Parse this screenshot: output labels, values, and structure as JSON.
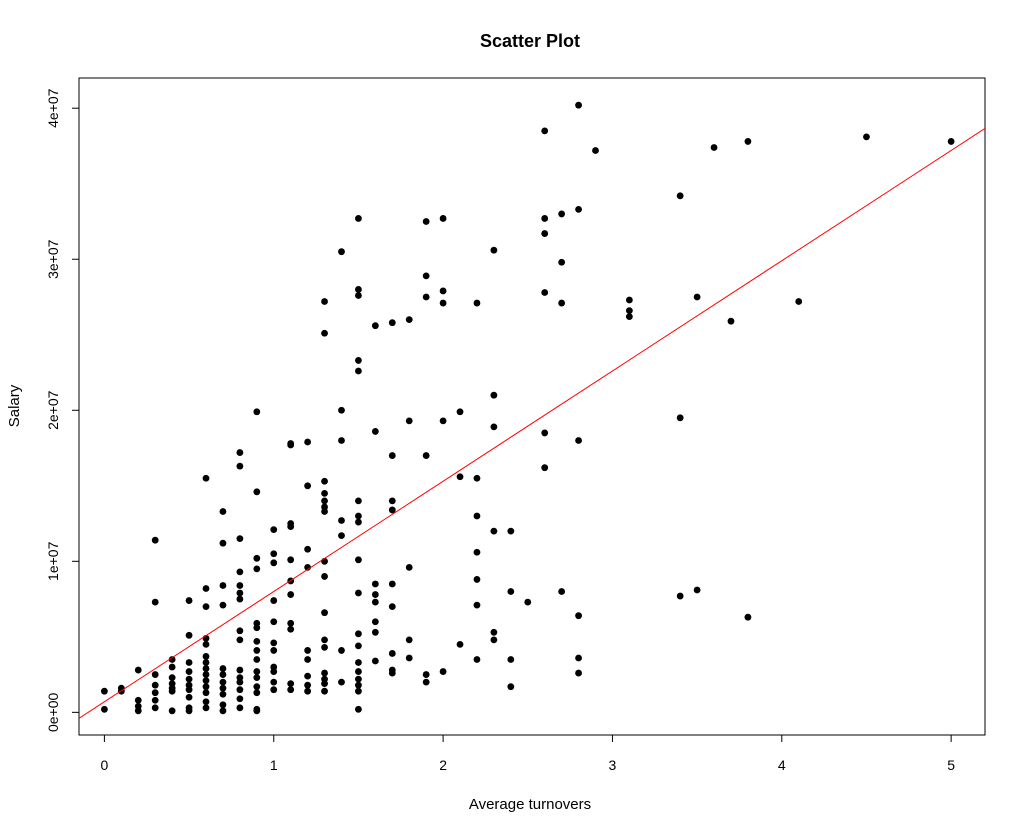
{
  "chart_data": {
    "type": "scatter",
    "title": "Scatter Plot",
    "xlabel": "Average turnovers",
    "ylabel": "Salary",
    "xlim": [
      -0.15,
      5.2
    ],
    "ylim": [
      -1500000,
      42000000
    ],
    "x_ticks": [
      0,
      1,
      2,
      3,
      4,
      5
    ],
    "x_tick_labels": [
      "0",
      "1",
      "2",
      "3",
      "4",
      "5"
    ],
    "y_ticks": [
      0,
      10000000,
      20000000,
      30000000,
      40000000
    ],
    "y_tick_labels": [
      "0e+00",
      "1e+07",
      "2e+07",
      "3e+07",
      "4e+07"
    ],
    "point_color": "#000000",
    "line_color": "#ff0000",
    "grid": false,
    "regression_line": {
      "intercept": 700000,
      "slope": 7300000
    },
    "points": [
      [
        0.0,
        1400000
      ],
      [
        0.0,
        200000
      ],
      [
        0.1,
        1600000
      ],
      [
        0.1,
        1400000
      ],
      [
        0.2,
        2800000
      ],
      [
        0.2,
        800000
      ],
      [
        0.2,
        400000
      ],
      [
        0.2,
        100000
      ],
      [
        0.3,
        11400000
      ],
      [
        0.3,
        7300000
      ],
      [
        0.3,
        2500000
      ],
      [
        0.3,
        1800000
      ],
      [
        0.3,
        1300000
      ],
      [
        0.3,
        800000
      ],
      [
        0.3,
        300000
      ],
      [
        0.4,
        3500000
      ],
      [
        0.4,
        3000000
      ],
      [
        0.4,
        2300000
      ],
      [
        0.4,
        1900000
      ],
      [
        0.4,
        1600000
      ],
      [
        0.4,
        1400000
      ],
      [
        0.4,
        100000
      ],
      [
        0.5,
        7400000
      ],
      [
        0.5,
        5100000
      ],
      [
        0.5,
        3300000
      ],
      [
        0.5,
        2700000
      ],
      [
        0.5,
        2200000
      ],
      [
        0.5,
        1800000
      ],
      [
        0.5,
        1500000
      ],
      [
        0.5,
        1000000
      ],
      [
        0.5,
        300000
      ],
      [
        0.5,
        100000
      ],
      [
        0.6,
        15500000
      ],
      [
        0.6,
        8200000
      ],
      [
        0.6,
        7000000
      ],
      [
        0.6,
        4900000
      ],
      [
        0.6,
        4500000
      ],
      [
        0.6,
        3700000
      ],
      [
        0.6,
        3300000
      ],
      [
        0.6,
        2900000
      ],
      [
        0.6,
        2500000
      ],
      [
        0.6,
        2100000
      ],
      [
        0.6,
        1700000
      ],
      [
        0.6,
        1300000
      ],
      [
        0.6,
        700000
      ],
      [
        0.6,
        300000
      ],
      [
        0.7,
        13300000
      ],
      [
        0.7,
        11200000
      ],
      [
        0.7,
        8400000
      ],
      [
        0.7,
        7100000
      ],
      [
        0.7,
        2900000
      ],
      [
        0.7,
        2500000
      ],
      [
        0.7,
        2000000
      ],
      [
        0.7,
        1600000
      ],
      [
        0.7,
        1200000
      ],
      [
        0.7,
        500000
      ],
      [
        0.7,
        100000
      ],
      [
        0.8,
        17200000
      ],
      [
        0.8,
        16300000
      ],
      [
        0.8,
        11500000
      ],
      [
        0.8,
        9300000
      ],
      [
        0.8,
        8400000
      ],
      [
        0.8,
        7900000
      ],
      [
        0.8,
        7500000
      ],
      [
        0.8,
        5400000
      ],
      [
        0.8,
        4800000
      ],
      [
        0.8,
        2800000
      ],
      [
        0.8,
        2300000
      ],
      [
        0.8,
        2000000
      ],
      [
        0.8,
        1500000
      ],
      [
        0.8,
        900000
      ],
      [
        0.8,
        300000
      ],
      [
        0.9,
        19900000
      ],
      [
        0.9,
        14600000
      ],
      [
        0.9,
        10200000
      ],
      [
        0.9,
        9500000
      ],
      [
        0.9,
        5900000
      ],
      [
        0.9,
        5600000
      ],
      [
        0.9,
        4700000
      ],
      [
        0.9,
        4100000
      ],
      [
        0.9,
        3500000
      ],
      [
        0.9,
        2700000
      ],
      [
        0.9,
        2300000
      ],
      [
        0.9,
        1700000
      ],
      [
        0.9,
        1300000
      ],
      [
        0.9,
        200000
      ],
      [
        0.9,
        100000
      ],
      [
        1.0,
        12100000
      ],
      [
        1.0,
        10500000
      ],
      [
        1.0,
        9900000
      ],
      [
        1.0,
        7400000
      ],
      [
        1.0,
        6000000
      ],
      [
        1.0,
        4600000
      ],
      [
        1.0,
        4100000
      ],
      [
        1.0,
        3000000
      ],
      [
        1.0,
        2700000
      ],
      [
        1.0,
        2000000
      ],
      [
        1.0,
        1500000
      ],
      [
        1.1,
        17800000
      ],
      [
        1.1,
        17700000
      ],
      [
        1.1,
        12500000
      ],
      [
        1.1,
        12300000
      ],
      [
        1.1,
        10100000
      ],
      [
        1.1,
        8700000
      ],
      [
        1.1,
        7800000
      ],
      [
        1.1,
        5900000
      ],
      [
        1.1,
        5500000
      ],
      [
        1.1,
        1900000
      ],
      [
        1.1,
        1500000
      ],
      [
        1.2,
        17900000
      ],
      [
        1.2,
        15000000
      ],
      [
        1.2,
        10800000
      ],
      [
        1.2,
        9600000
      ],
      [
        1.2,
        4100000
      ],
      [
        1.2,
        3500000
      ],
      [
        1.2,
        2400000
      ],
      [
        1.2,
        1800000
      ],
      [
        1.2,
        1400000
      ],
      [
        1.3,
        27200000
      ],
      [
        1.3,
        25100000
      ],
      [
        1.3,
        15300000
      ],
      [
        1.3,
        14500000
      ],
      [
        1.3,
        14000000
      ],
      [
        1.3,
        13600000
      ],
      [
        1.3,
        13300000
      ],
      [
        1.3,
        10000000
      ],
      [
        1.3,
        9000000
      ],
      [
        1.3,
        6600000
      ],
      [
        1.3,
        4800000
      ],
      [
        1.3,
        4300000
      ],
      [
        1.3,
        2600000
      ],
      [
        1.3,
        2200000
      ],
      [
        1.3,
        1900000
      ],
      [
        1.3,
        1400000
      ],
      [
        1.4,
        30500000
      ],
      [
        1.4,
        20000000
      ],
      [
        1.4,
        18000000
      ],
      [
        1.4,
        12700000
      ],
      [
        1.4,
        11700000
      ],
      [
        1.4,
        4100000
      ],
      [
        1.4,
        2000000
      ],
      [
        1.5,
        32700000
      ],
      [
        1.5,
        28000000
      ],
      [
        1.5,
        27600000
      ],
      [
        1.5,
        23300000
      ],
      [
        1.5,
        22600000
      ],
      [
        1.5,
        14000000
      ],
      [
        1.5,
        13000000
      ],
      [
        1.5,
        12600000
      ],
      [
        1.5,
        10100000
      ],
      [
        1.5,
        7900000
      ],
      [
        1.5,
        5200000
      ],
      [
        1.5,
        4400000
      ],
      [
        1.5,
        3300000
      ],
      [
        1.5,
        2700000
      ],
      [
        1.5,
        2200000
      ],
      [
        1.5,
        1800000
      ],
      [
        1.5,
        1400000
      ],
      [
        1.5,
        200000
      ],
      [
        1.6,
        25600000
      ],
      [
        1.6,
        18600000
      ],
      [
        1.6,
        8500000
      ],
      [
        1.6,
        7800000
      ],
      [
        1.6,
        7300000
      ],
      [
        1.6,
        6000000
      ],
      [
        1.6,
        5300000
      ],
      [
        1.6,
        3400000
      ],
      [
        1.7,
        25800000
      ],
      [
        1.7,
        17000000
      ],
      [
        1.7,
        14000000
      ],
      [
        1.7,
        13400000
      ],
      [
        1.7,
        8500000
      ],
      [
        1.7,
        7000000
      ],
      [
        1.7,
        3900000
      ],
      [
        1.7,
        2800000
      ],
      [
        1.7,
        2600000
      ],
      [
        1.8,
        26000000
      ],
      [
        1.8,
        19300000
      ],
      [
        1.8,
        9600000
      ],
      [
        1.8,
        4800000
      ],
      [
        1.8,
        3600000
      ],
      [
        1.9,
        32500000
      ],
      [
        1.9,
        28900000
      ],
      [
        1.9,
        27500000
      ],
      [
        1.9,
        17000000
      ],
      [
        1.9,
        2500000
      ],
      [
        1.9,
        2000000
      ],
      [
        2.0,
        32700000
      ],
      [
        2.0,
        27900000
      ],
      [
        2.0,
        27100000
      ],
      [
        2.0,
        19300000
      ],
      [
        2.0,
        2700000
      ],
      [
        2.1,
        19900000
      ],
      [
        2.1,
        15600000
      ],
      [
        2.1,
        4500000
      ],
      [
        2.2,
        27100000
      ],
      [
        2.2,
        15500000
      ],
      [
        2.2,
        13000000
      ],
      [
        2.2,
        10600000
      ],
      [
        2.2,
        8800000
      ],
      [
        2.2,
        7100000
      ],
      [
        2.2,
        3500000
      ],
      [
        2.3,
        30600000
      ],
      [
        2.3,
        21000000
      ],
      [
        2.3,
        18900000
      ],
      [
        2.3,
        12000000
      ],
      [
        2.3,
        5300000
      ],
      [
        2.3,
        4800000
      ],
      [
        2.4,
        12000000
      ],
      [
        2.4,
        8000000
      ],
      [
        2.4,
        3500000
      ],
      [
        2.4,
        1700000
      ],
      [
        2.5,
        7300000
      ],
      [
        2.6,
        38500000
      ],
      [
        2.6,
        32700000
      ],
      [
        2.6,
        31700000
      ],
      [
        2.6,
        27800000
      ],
      [
        2.6,
        18500000
      ],
      [
        2.6,
        16200000
      ],
      [
        2.7,
        33000000
      ],
      [
        2.7,
        29800000
      ],
      [
        2.7,
        27100000
      ],
      [
        2.7,
        8000000
      ],
      [
        2.8,
        40200000
      ],
      [
        2.8,
        33300000
      ],
      [
        2.8,
        18000000
      ],
      [
        2.8,
        6400000
      ],
      [
        2.8,
        3600000
      ],
      [
        2.8,
        2600000
      ],
      [
        2.9,
        37200000
      ],
      [
        3.1,
        27300000
      ],
      [
        3.1,
        26600000
      ],
      [
        3.1,
        26200000
      ],
      [
        3.4,
        34200000
      ],
      [
        3.4,
        19500000
      ],
      [
        3.4,
        7700000
      ],
      [
        3.5,
        27500000
      ],
      [
        3.5,
        8100000
      ],
      [
        3.6,
        37400000
      ],
      [
        3.7,
        25900000
      ],
      [
        3.8,
        37800000
      ],
      [
        3.8,
        6300000
      ],
      [
        4.1,
        27200000
      ],
      [
        4.5,
        38100000
      ],
      [
        5.0,
        37800000
      ]
    ]
  }
}
